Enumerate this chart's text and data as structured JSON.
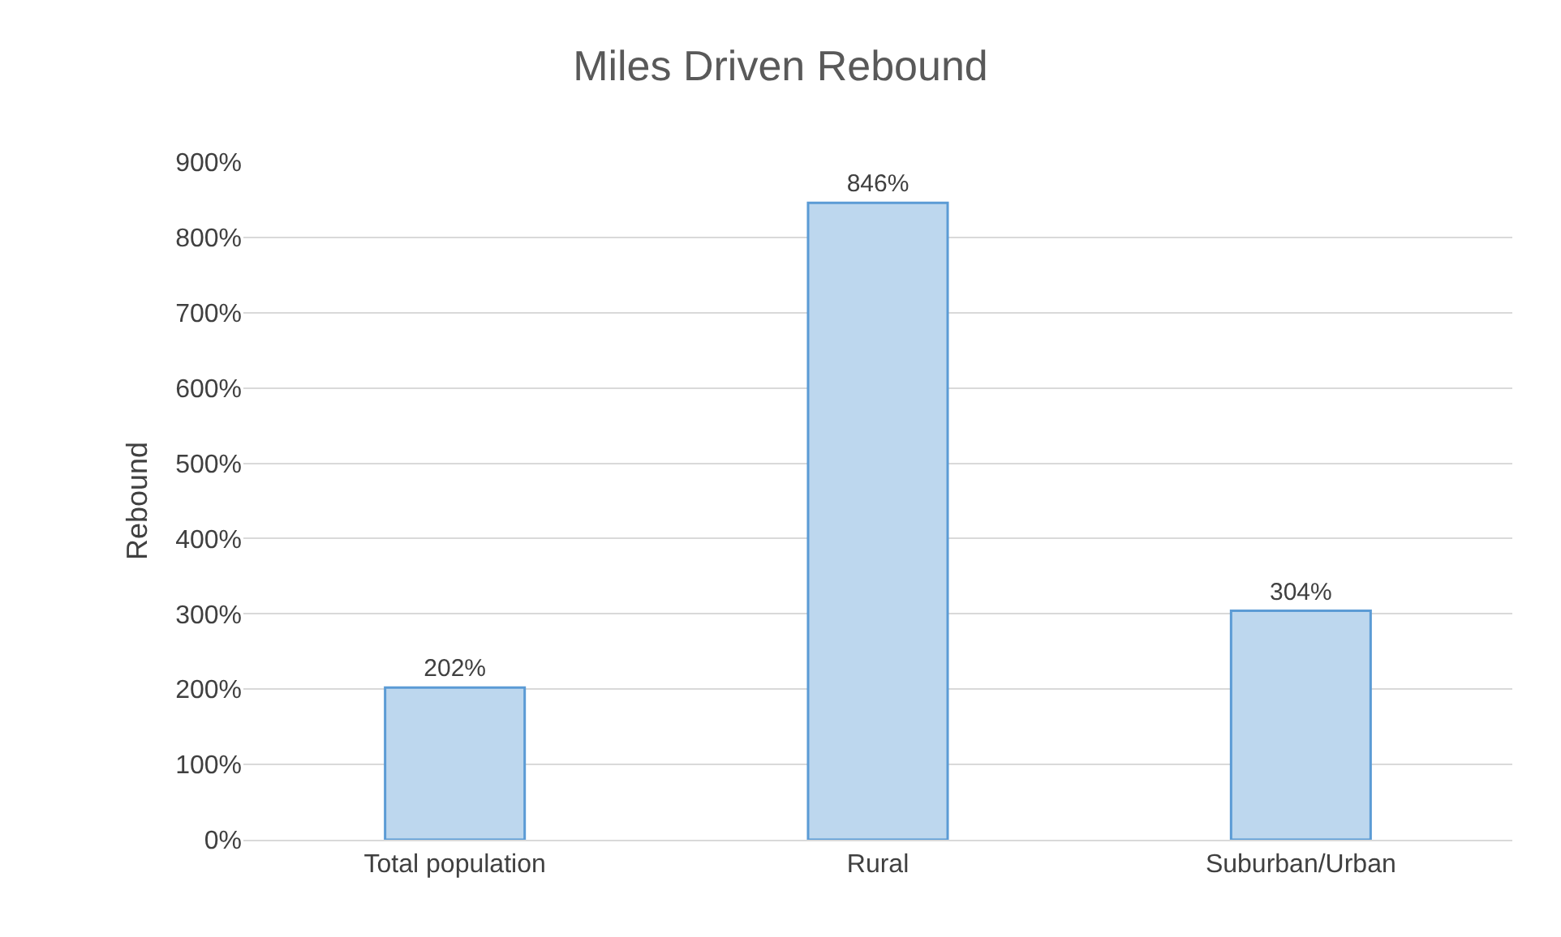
{
  "chart_data": {
    "type": "bar",
    "title": "Miles Driven Rebound",
    "ylabel": "Rebound",
    "categories": [
      "Total population",
      "Rural",
      "Suburban/Urban"
    ],
    "values": [
      202,
      846,
      304
    ],
    "value_labels": [
      "202%",
      "846%",
      "304%"
    ],
    "color": "#bdd7ee",
    "ylim": [
      0,
      900
    ],
    "yticks": [
      {
        "value": 0,
        "label": "0%"
      },
      {
        "value": 100,
        "label": "100%"
      },
      {
        "value": 200,
        "label": "200%"
      },
      {
        "value": 300,
        "label": "300%"
      },
      {
        "value": 400,
        "label": "400%"
      },
      {
        "value": 500,
        "label": "500%"
      },
      {
        "value": 600,
        "label": "600%"
      },
      {
        "value": 700,
        "label": "700%"
      },
      {
        "value": 800,
        "label": "800%"
      },
      {
        "value": 900,
        "label": "900%"
      }
    ],
    "grid": "y"
  }
}
